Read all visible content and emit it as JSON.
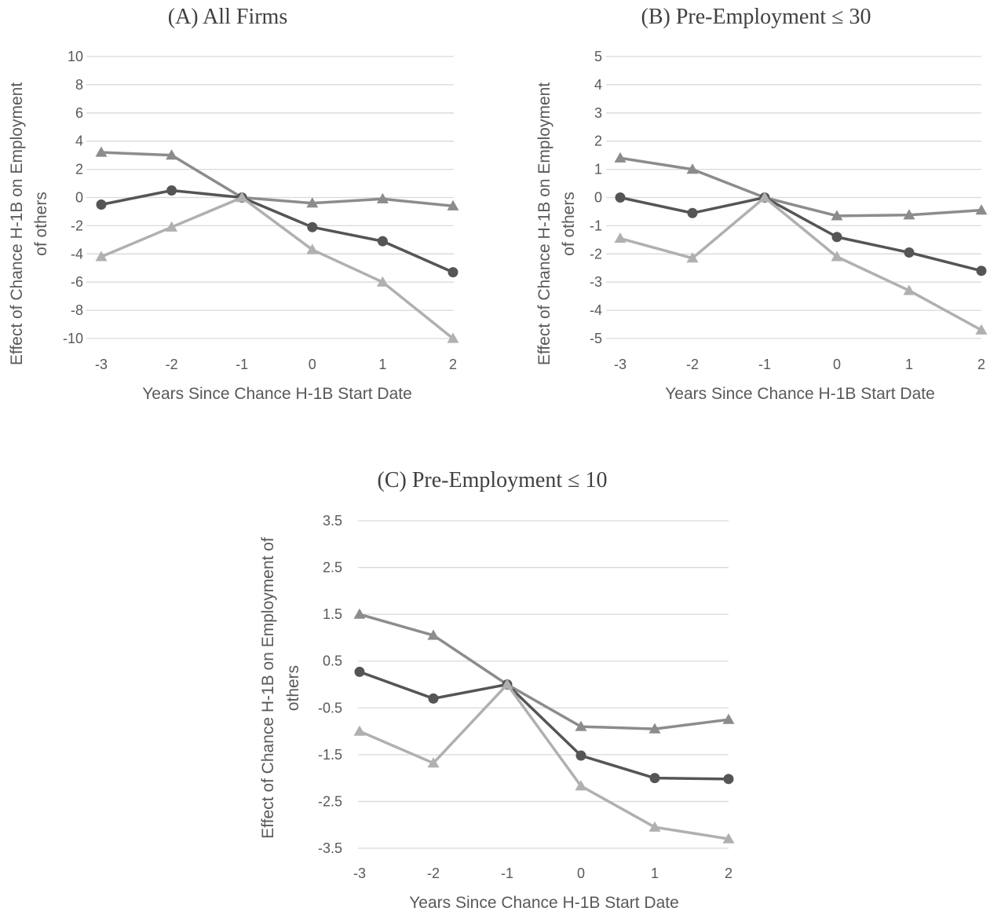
{
  "colors": {
    "mid_triangle": "#8c8c8c",
    "dark_circle": "#555555",
    "light_triangle": "#b0b0b0",
    "grid": "#d9d9d9"
  },
  "chart_data": [
    {
      "type": "line",
      "title": "(A) All Firms",
      "xlabel": "Years Since Chance H-1B Start Date",
      "ylabel_lines": [
        "Effect of Chance H-1B on Employment",
        "of others"
      ],
      "x": [
        "-3",
        "-2",
        "-1",
        "0",
        "1",
        "2"
      ],
      "yticks": [
        10,
        8,
        6,
        4,
        2,
        0,
        -2,
        -4,
        -6,
        -8,
        -10
      ],
      "ytick_labels": [
        "10",
        "8",
        "6",
        "4",
        "2",
        "0",
        "-2",
        "-4",
        "-6",
        "-8",
        "-10"
      ],
      "ylim": [
        -10,
        10
      ],
      "grid": true,
      "series": [
        {
          "marker": "triangle",
          "color": "#8c8c8c",
          "values": [
            3.2,
            3.0,
            0.0,
            -0.4,
            -0.1,
            -0.6
          ]
        },
        {
          "marker": "circle",
          "color": "#555555",
          "values": [
            -0.5,
            0.5,
            0.0,
            -2.1,
            -3.1,
            -5.3
          ]
        },
        {
          "marker": "triangle",
          "color": "#b0b0b0",
          "values": [
            -4.2,
            -2.1,
            0.0,
            -3.7,
            -6.0,
            -10.0
          ]
        }
      ]
    },
    {
      "type": "line",
      "title": "(B) Pre-Employment ≤ 30",
      "xlabel": "Years Since Chance H-1B Start Date",
      "ylabel_lines": [
        "Effect of Chance H-1B on Employment",
        "of others"
      ],
      "x": [
        "-3",
        "-2",
        "-1",
        "0",
        "1",
        "2"
      ],
      "yticks": [
        5,
        4,
        3,
        2,
        1,
        0,
        -1,
        -2,
        -3,
        -4,
        -5
      ],
      "ytick_labels": [
        "5",
        "4",
        "3",
        "2",
        "1",
        "0",
        "-1",
        "-2",
        "-3",
        "-4",
        "-5"
      ],
      "ylim": [
        -5,
        5
      ],
      "grid": true,
      "series": [
        {
          "marker": "triangle",
          "color": "#8c8c8c",
          "values": [
            1.4,
            1.0,
            0.0,
            -0.65,
            -0.62,
            -0.45
          ]
        },
        {
          "marker": "circle",
          "color": "#555555",
          "values": [
            0.0,
            -0.55,
            0.0,
            -1.4,
            -1.95,
            -2.6
          ]
        },
        {
          "marker": "triangle",
          "color": "#b0b0b0",
          "values": [
            -1.45,
            -2.15,
            0.0,
            -2.1,
            -3.3,
            -4.7
          ]
        }
      ]
    },
    {
      "type": "line",
      "title": "(C) Pre-Employment ≤ 10",
      "xlabel": "Years Since Chance H-1B Start Date",
      "ylabel_lines": [
        "Effect of Chance H-1B on Employment of",
        "others"
      ],
      "x": [
        "-3",
        "-2",
        "-1",
        "0",
        "1",
        "2"
      ],
      "yticks": [
        3.5,
        2.5,
        1.5,
        0.5,
        -0.5,
        -1.5,
        -2.5,
        -3.5
      ],
      "ytick_labels": [
        "3.5",
        "2.5",
        "1.5",
        "0.5",
        "-0.5",
        "-1.5",
        "-2.5",
        "-3.5"
      ],
      "ylim": [
        -3.5,
        3.5
      ],
      "grid": true,
      "series": [
        {
          "marker": "triangle",
          "color": "#8c8c8c",
          "values": [
            1.5,
            1.05,
            0.0,
            -0.9,
            -0.95,
            -0.75
          ]
        },
        {
          "marker": "circle",
          "color": "#555555",
          "values": [
            0.27,
            -0.3,
            0.0,
            -1.52,
            -2.0,
            -2.02
          ]
        },
        {
          "marker": "triangle",
          "color": "#b0b0b0",
          "values": [
            -1.0,
            -1.68,
            0.0,
            -2.17,
            -3.05,
            -3.3
          ]
        }
      ]
    }
  ]
}
